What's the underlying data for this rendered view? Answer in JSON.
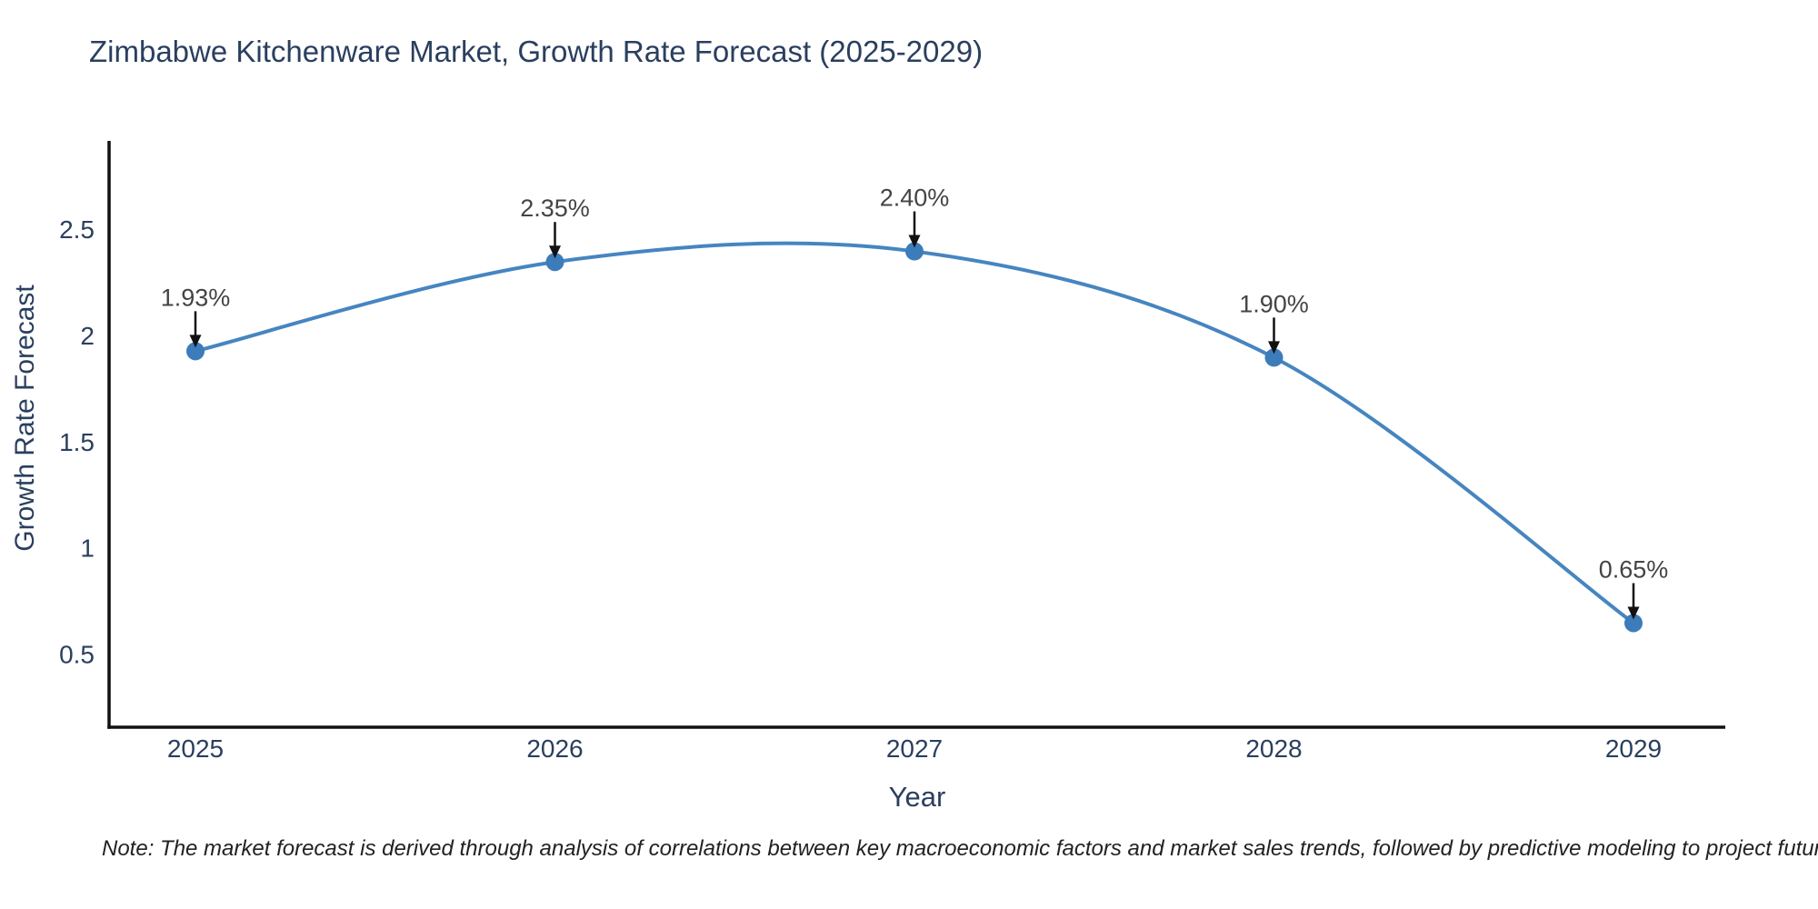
{
  "chart_data": {
    "type": "line",
    "title": "Zimbabwe Kitchenware Market, Growth Rate Forecast (2025-2029)",
    "xlabel": "Year",
    "ylabel": "Growth Rate Forecast",
    "categories": [
      "2025",
      "2026",
      "2027",
      "2028",
      "2029"
    ],
    "values": [
      1.93,
      2.35,
      2.4,
      1.9,
      0.65
    ],
    "point_labels": [
      "1.93%",
      "2.35%",
      "2.40%",
      "1.90%",
      "0.65%"
    ],
    "yticks": [
      0.5,
      1,
      1.5,
      2,
      2.5
    ],
    "ylim": [
      0.16,
      2.92
    ],
    "line_shape": "spline",
    "grid": false,
    "legend": "none",
    "colors": {
      "line": "#4685c0",
      "marker": "#3d7cba",
      "axis": "#111111",
      "arrow": "#111111",
      "title_text": "#2a3f5f",
      "tick_text": "#2a3f5f",
      "annotation_text": "#444444",
      "background": "#ffffff"
    }
  },
  "note": {
    "text": "Note: The market forecast is derived through analysis of correlations between key macroeconomic factors and market sales trends, followed by predictive modeling to project future sales"
  }
}
